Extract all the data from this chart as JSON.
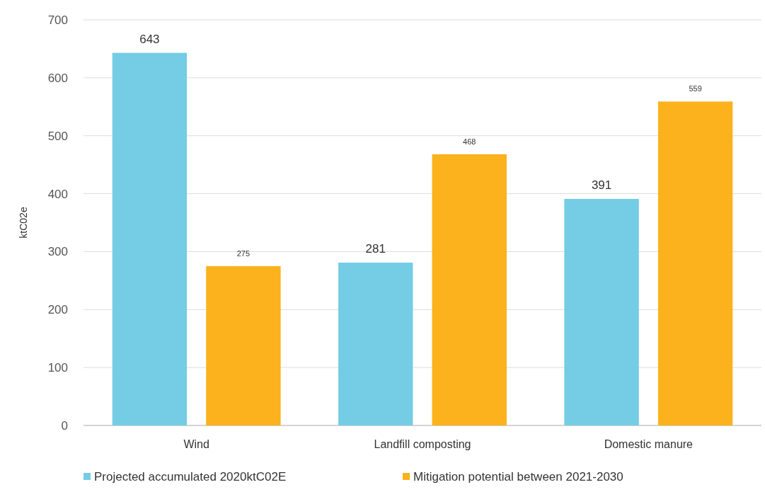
{
  "chart_data": {
    "type": "bar",
    "ylabel": "ktC02e",
    "categories": [
      "Wind",
      "Landfill composting",
      "Domestic manure"
    ],
    "series": [
      {
        "name": "Projected accumulated 2020ktC02E",
        "color": "#74cde4",
        "values": [
          643,
          281,
          391
        ]
      },
      {
        "name": "Mitigation potential between 2021-2030",
        "color": "#fbb21c",
        "values": [
          275,
          468,
          559
        ]
      }
    ],
    "ylim": [
      0,
      700
    ],
    "yticks": [
      0,
      100,
      200,
      300,
      400,
      500,
      600,
      700
    ],
    "grid": "y",
    "legend": "bottom left",
    "data_labels": true
  }
}
